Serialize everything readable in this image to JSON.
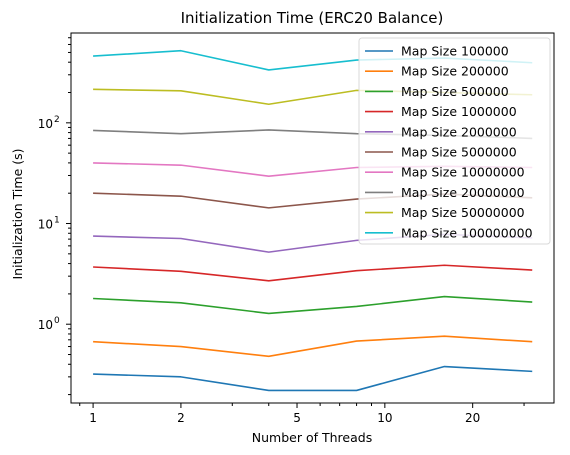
{
  "chart_data": {
    "type": "line",
    "title": "Initialization Time (ERC20 Balance)",
    "xlabel": "Number of Threads",
    "ylabel": "Initialization Time (s)",
    "x_scale": "log",
    "y_scale": "log",
    "xlim": [
      0.84,
      38
    ],
    "ylim": [
      0.165,
      780
    ],
    "grid": false,
    "legend_position": "top-right",
    "x": [
      1,
      2,
      4,
      8,
      16,
      32
    ],
    "x_ticks": [
      {
        "value": 1,
        "label": "1"
      },
      {
        "value": 2,
        "label": "2"
      },
      {
        "value": 5,
        "label": "5"
      },
      {
        "value": 10,
        "label": "10"
      },
      {
        "value": 20,
        "label": "20"
      }
    ],
    "y_ticks": [
      {
        "value": 1,
        "label": "10⁰",
        "base": "10",
        "exp": "0"
      },
      {
        "value": 10,
        "label": "10¹",
        "base": "10",
        "exp": "1"
      },
      {
        "value": 100,
        "label": "10²",
        "base": "10",
        "exp": "2"
      }
    ],
    "series": [
      {
        "name": "Map Size 100000",
        "color": "#1f77b4",
        "values": [
          0.32,
          0.3,
          0.22,
          0.22,
          0.38,
          0.34
        ]
      },
      {
        "name": "Map Size 200000",
        "color": "#ff7f0e",
        "values": [
          0.67,
          0.6,
          0.48,
          0.68,
          0.76,
          0.67
        ]
      },
      {
        "name": "Map Size 500000",
        "color": "#2ca02c",
        "values": [
          1.8,
          1.63,
          1.28,
          1.5,
          1.88,
          1.66
        ]
      },
      {
        "name": "Map Size 1000000",
        "color": "#d62728",
        "values": [
          3.7,
          3.35,
          2.7,
          3.4,
          3.85,
          3.45
        ]
      },
      {
        "name": "Map Size 2000000",
        "color": "#9467bd",
        "values": [
          7.5,
          7.1,
          5.2,
          6.8,
          7.8,
          7.2
        ]
      },
      {
        "name": "Map Size 5000000",
        "color": "#8c564b",
        "values": [
          20,
          18.7,
          14.3,
          17.5,
          19.6,
          18
        ]
      },
      {
        "name": "Map Size 10000000",
        "color": "#e377c2",
        "values": [
          40,
          38,
          29.5,
          36,
          37,
          36
        ]
      },
      {
        "name": "Map Size 20000000",
        "color": "#7f7f7f",
        "values": [
          84,
          78,
          85,
          78,
          75,
          70
        ]
      },
      {
        "name": "Map Size 50000000",
        "color": "#bcbd22",
        "values": [
          215,
          208,
          153,
          210,
          200,
          190
        ]
      },
      {
        "name": "Map Size 100000000",
        "color": "#17becf",
        "values": [
          460,
          520,
          335,
          420,
          440,
          395
        ]
      }
    ]
  }
}
